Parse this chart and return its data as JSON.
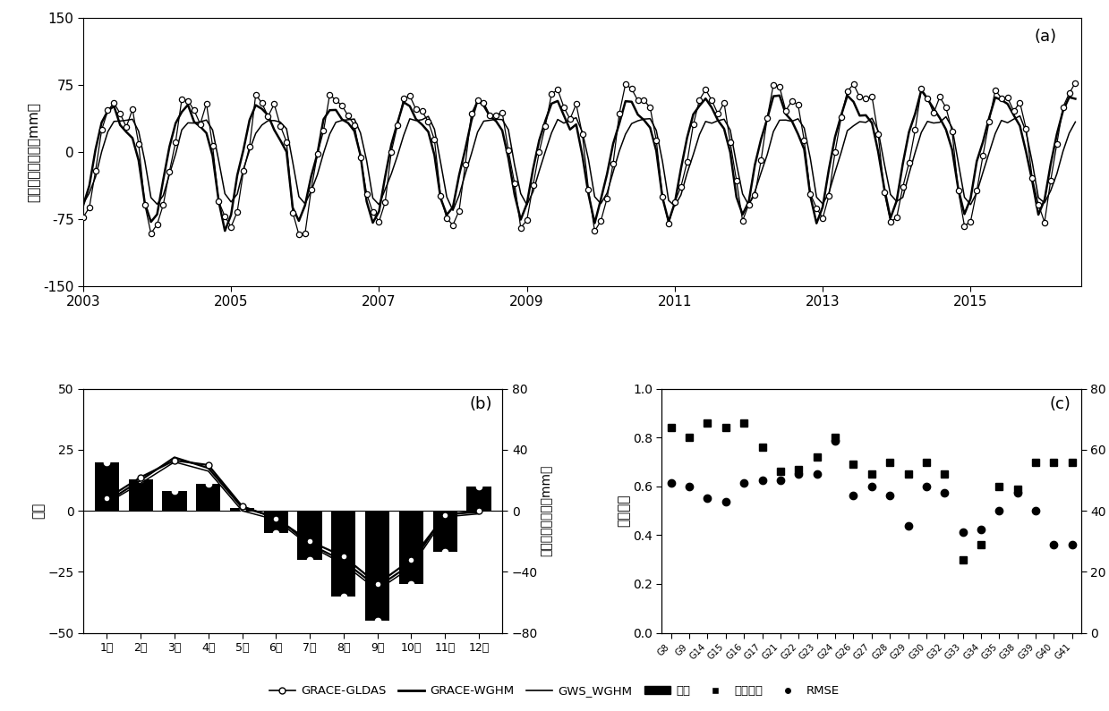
{
  "panel_a": {
    "ylabel": "地下水储量异常（mm）",
    "ylim": [
      -150,
      150
    ],
    "yticks": [
      -150,
      -75,
      0,
      75,
      150
    ],
    "xlim": [
      2003.0,
      2016.5
    ],
    "xticks": [
      2003,
      2005,
      2007,
      2009,
      2011,
      2013,
      2015
    ],
    "label": "(a)"
  },
  "panel_b": {
    "ylabel_left": "偏差",
    "ylabel_right": "地下水储量异常（mm）",
    "ylim_left": [
      -50,
      50
    ],
    "ylim_right": [
      -80,
      80
    ],
    "yticks_left": [
      -50,
      -25,
      0,
      25,
      50
    ],
    "yticks_right": [
      -80,
      -40,
      0,
      40,
      80
    ],
    "months": [
      "1月",
      "2月",
      "3月",
      "4月",
      "5月",
      "6月",
      "7月",
      "8月",
      "9月",
      "10月",
      "11月",
      "12月"
    ],
    "bias_bars": [
      20,
      13,
      8,
      11,
      1,
      -9,
      -20,
      -35,
      -45,
      -30,
      -17,
      10
    ],
    "grace_gldas_mm": [
      8,
      22,
      33,
      30,
      3,
      -5,
      -20,
      -30,
      -48,
      -32,
      -3,
      0
    ],
    "grace_wghm_mm": [
      6,
      20,
      35,
      28,
      2,
      -4,
      -22,
      -33,
      -50,
      -35,
      -2,
      -1
    ],
    "gws_wghm_mm": [
      5,
      18,
      32,
      26,
      0,
      -6,
      -23,
      -35,
      -52,
      -37,
      -4,
      -2
    ],
    "label": "(b)"
  },
  "panel_c": {
    "ylabel_left": "相关系数",
    "ylabel_right": "RMSE（mm）",
    "ylim_left": [
      0.0,
      1.0
    ],
    "ylim_right": [
      0,
      80
    ],
    "yticks_left": [
      0.0,
      0.2,
      0.4,
      0.6,
      0.8,
      1.0
    ],
    "yticks_right": [
      0,
      20,
      40,
      60,
      80
    ],
    "stations": [
      "G8",
      "G9",
      "G14",
      "G15",
      "G16",
      "G17",
      "G21",
      "G22",
      "G23",
      "G24",
      "G26",
      "G27",
      "G28",
      "G29",
      "G30",
      "G32",
      "G33",
      "G34",
      "G35",
      "G38",
      "G39",
      "G40",
      "G41"
    ],
    "corr": [
      0.84,
      0.8,
      0.86,
      0.84,
      0.86,
      0.76,
      0.66,
      0.67,
      0.72,
      0.8,
      0.69,
      0.65,
      0.7,
      0.65,
      0.7,
      0.65,
      0.3,
      0.36,
      0.6,
      0.59,
      0.7,
      0.7,
      0.7
    ],
    "rmse_mm": [
      49,
      48,
      44,
      43,
      49,
      50,
      50,
      52,
      52,
      63,
      45,
      48,
      45,
      35,
      48,
      46,
      33,
      34,
      40,
      46,
      40,
      29,
      29
    ],
    "label": "(c)"
  },
  "legend": {
    "grace_gldas": "GRACE-GLDAS",
    "grace_wghm": "GRACE-WGHM",
    "gws_wghm": "GWS_WGHM",
    "bias": "偏差",
    "corr": "相关系数",
    "rmse": "RMSE"
  }
}
